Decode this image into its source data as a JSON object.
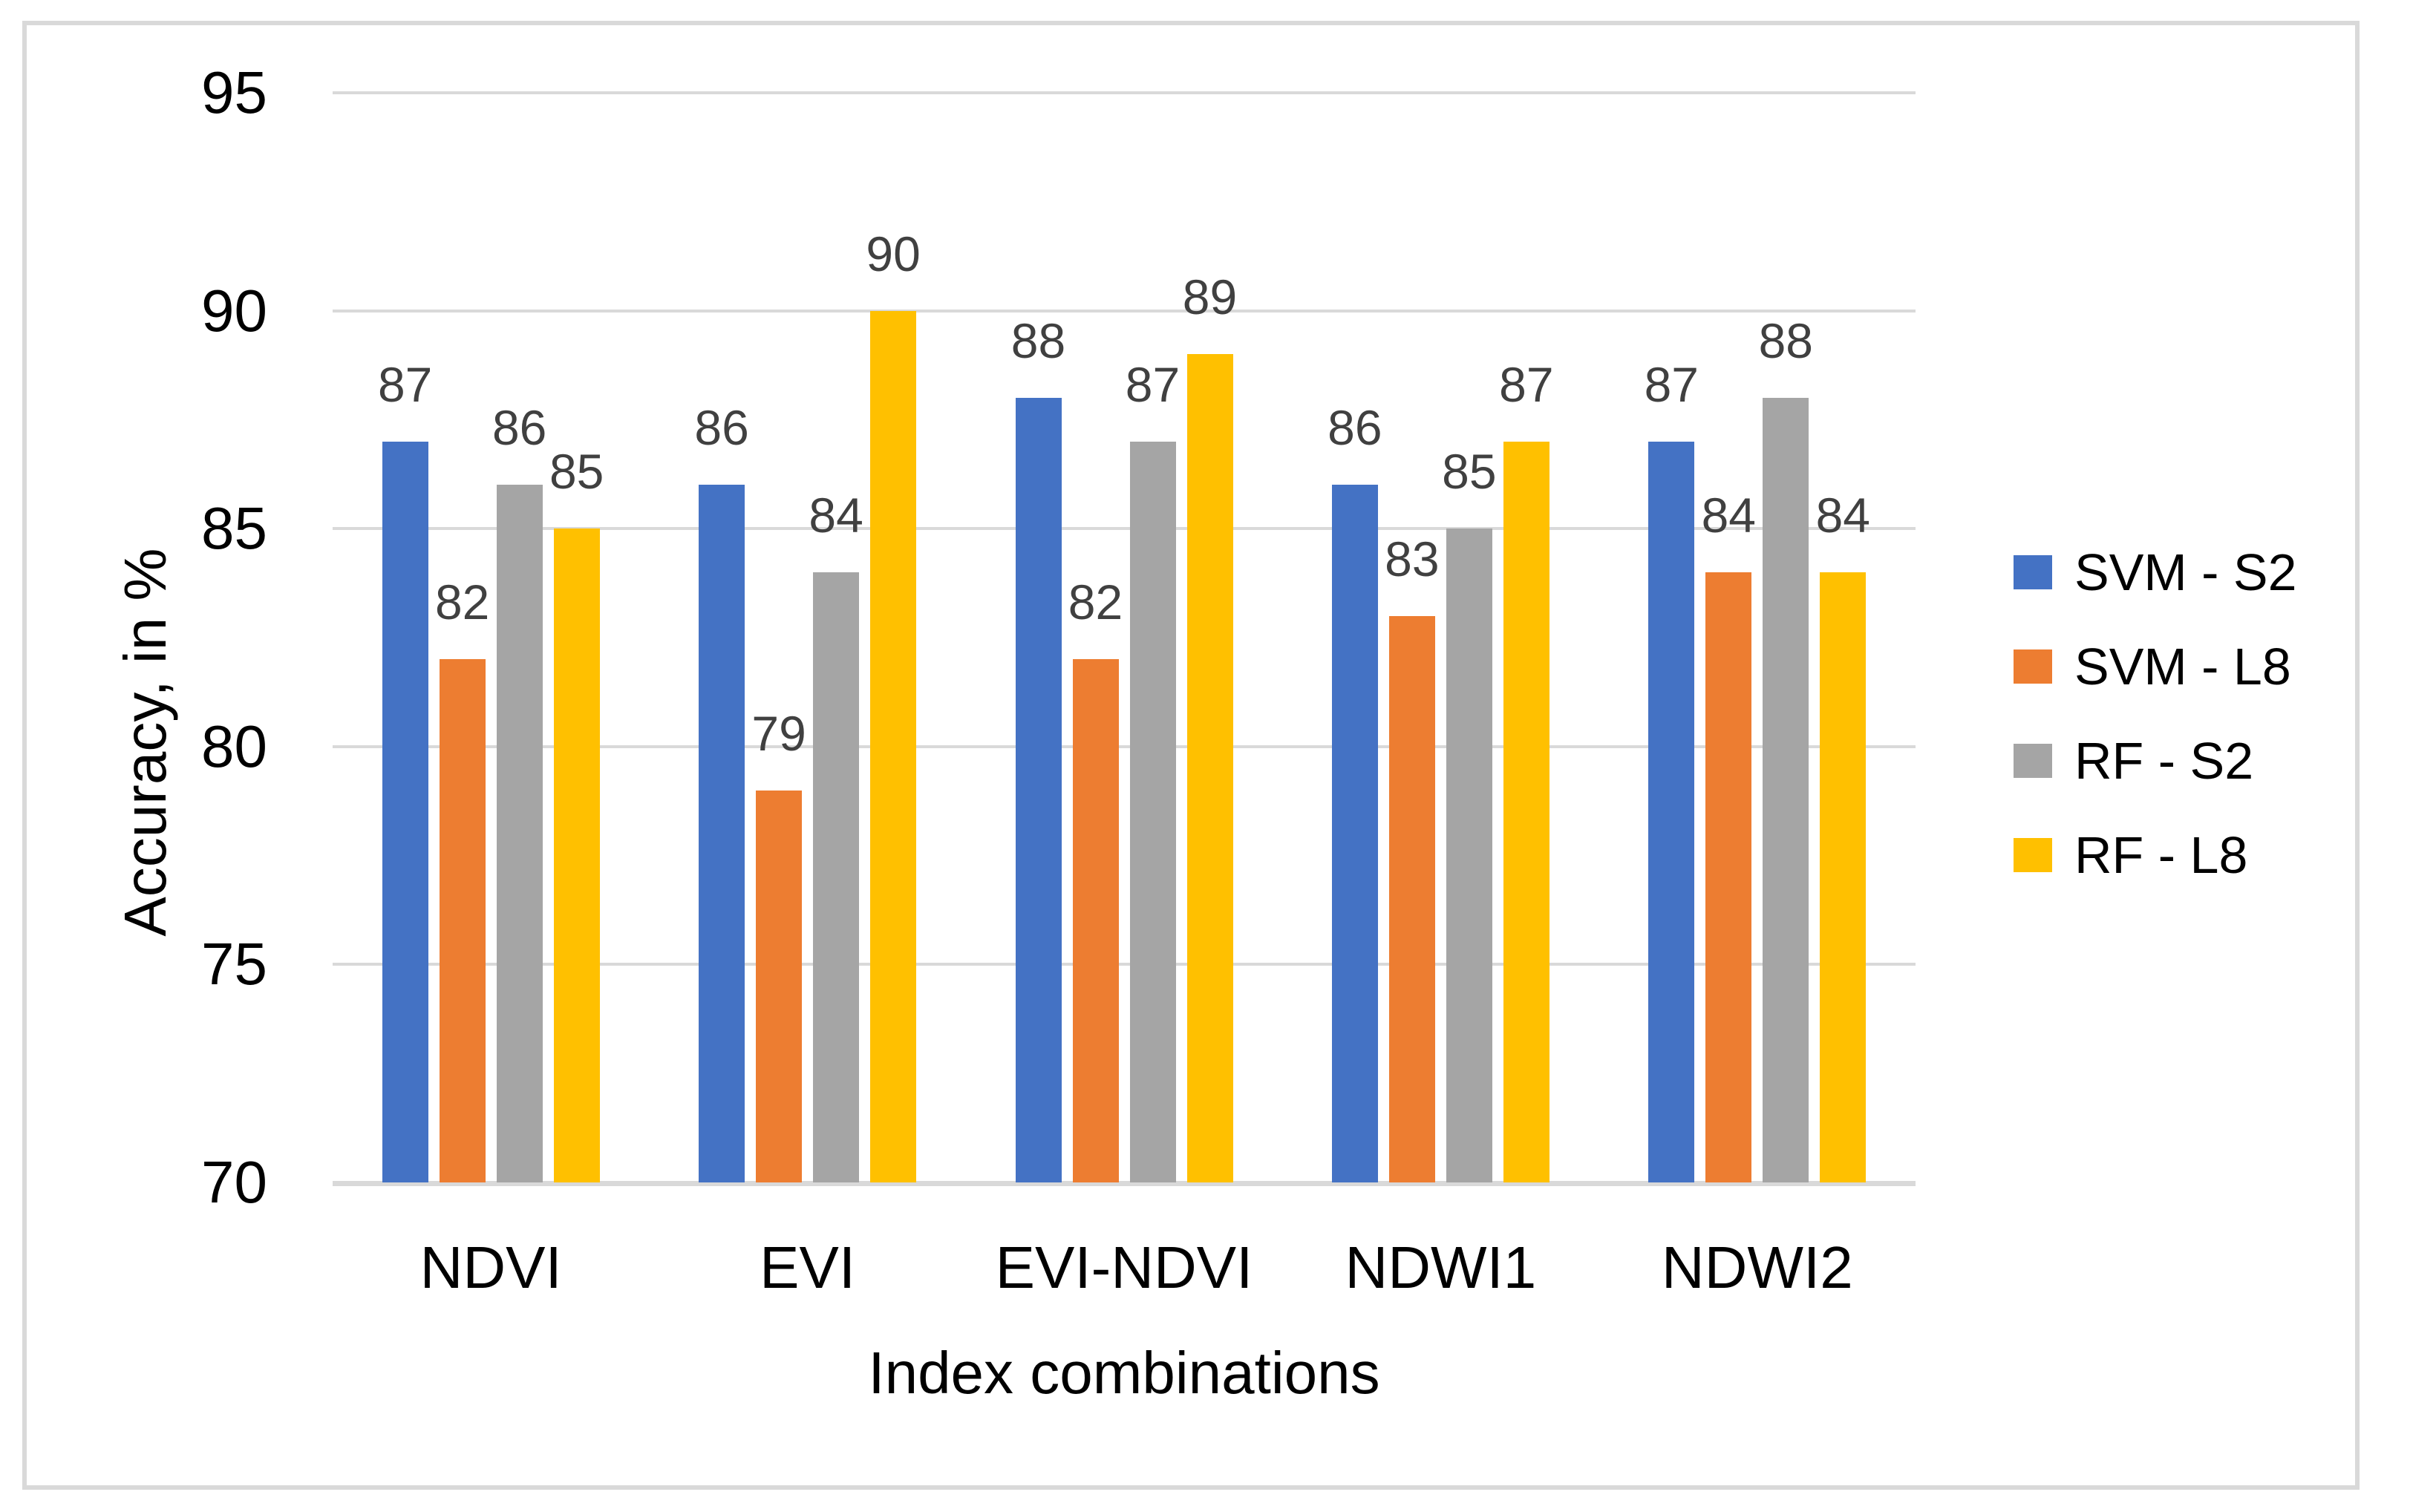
{
  "figure": {
    "background": "#FFFFFF",
    "frame_border_color": "#D9D9D9"
  },
  "chart_data": {
    "type": "bar",
    "title": "",
    "xlabel": "Index combinations",
    "ylabel": "Accuracy, in %",
    "categories": [
      "NDVI",
      "EVI",
      "EVI-NDVI",
      "NDWI1",
      "NDWI2"
    ],
    "series": [
      {
        "name": "SVM - S2",
        "color": "#4472C4",
        "values": [
          87,
          86,
          88,
          86,
          87
        ]
      },
      {
        "name": "SVM - L8",
        "color": "#ED7D31",
        "values": [
          82,
          79,
          82,
          83,
          84
        ]
      },
      {
        "name": "RF - S2",
        "color": "#A5A5A5",
        "values": [
          86,
          84,
          87,
          85,
          88
        ]
      },
      {
        "name": "RF - L8",
        "color": "#FFC000",
        "values": [
          85,
          90,
          89,
          87,
          84
        ]
      }
    ],
    "ylim": [
      70,
      95
    ],
    "yticks": [
      95,
      90,
      85,
      80,
      75,
      70
    ],
    "grid": true,
    "data_labels": true,
    "legend_position": "right",
    "style": {
      "gridline_color": "#D9D9D9",
      "axis_line_color": "#D9D9D9",
      "axis_text_color": "#000000",
      "data_label_color": "#404040"
    }
  }
}
